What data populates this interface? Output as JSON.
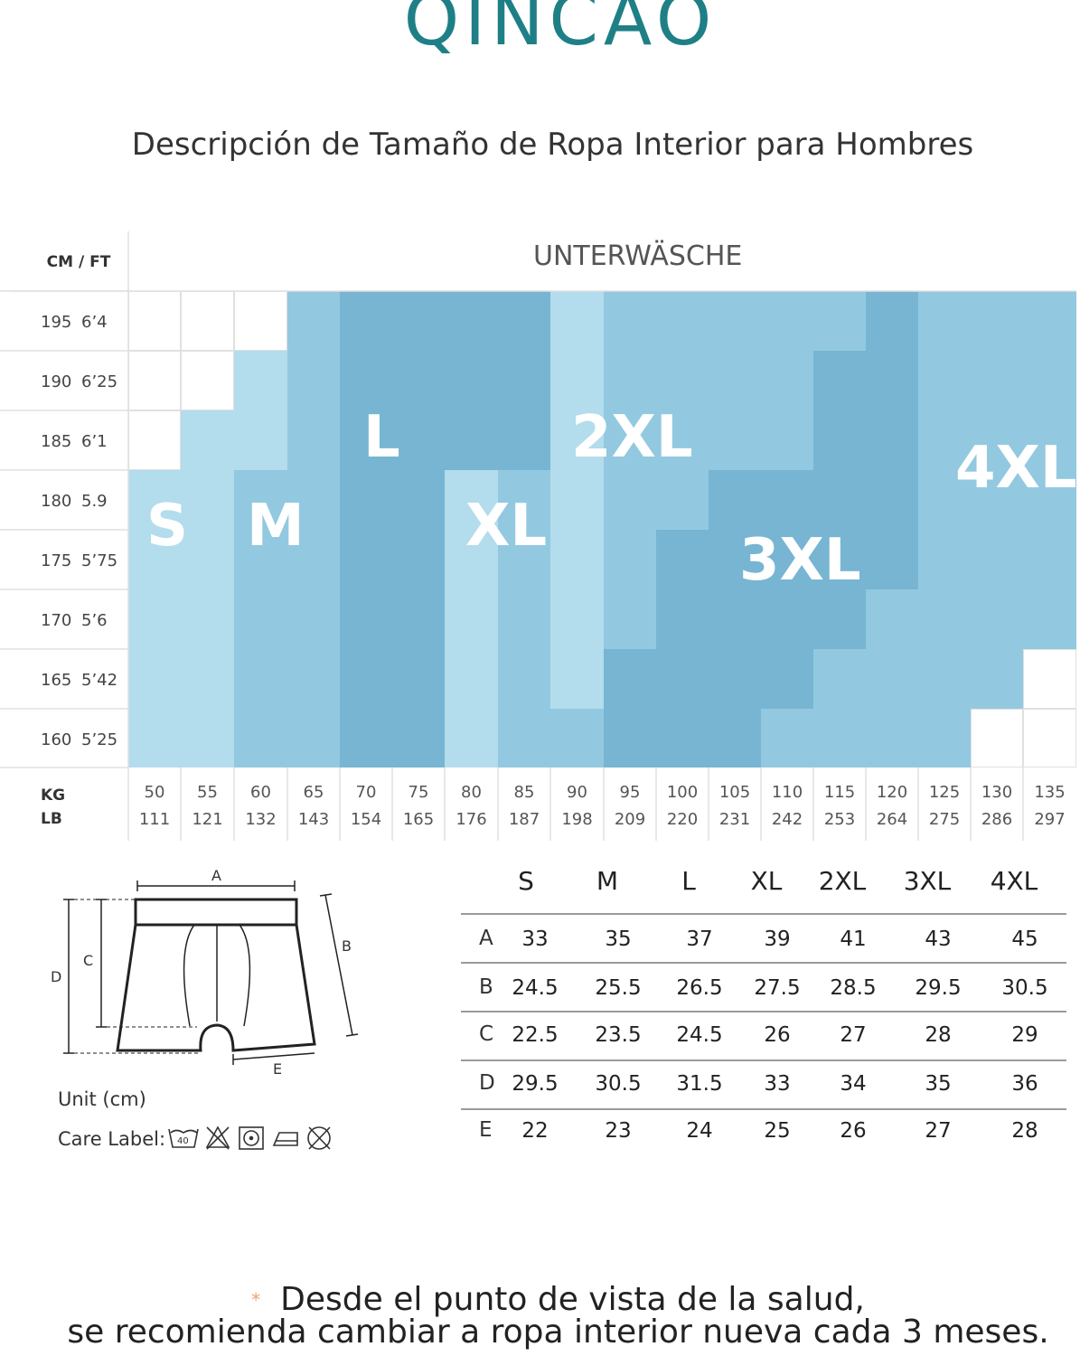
{
  "brand": {
    "logo_text": "QINCAO"
  },
  "title": "Descripción de Tamaño de Ropa Interior para Hombres",
  "size_chart": {
    "corner_label": "CM / FT",
    "heading": "UNTERWÄSCHE",
    "height_rows": [
      {
        "cm": "195",
        "ft": "6’4"
      },
      {
        "cm": "190",
        "ft": "6’25"
      },
      {
        "cm": "185",
        "ft": "6’1"
      },
      {
        "cm": "180",
        "ft": "5.9"
      },
      {
        "cm": "175",
        "ft": "5’75"
      },
      {
        "cm": "170",
        "ft": "5’6"
      },
      {
        "cm": "165",
        "ft": "5’42"
      },
      {
        "cm": "160",
        "ft": "5’25"
      }
    ],
    "weight_label_kg": "KG",
    "weight_label_lb": "LB",
    "weights_kg": [
      "50",
      "55",
      "60",
      "65",
      "70",
      "75",
      "80",
      "85",
      "90",
      "95",
      "100",
      "105",
      "110",
      "115",
      "120",
      "125",
      "130",
      "135"
    ],
    "weights_lb": [
      "111",
      "121",
      "132",
      "143",
      "154",
      "165",
      "176",
      "187",
      "198",
      "209",
      "220",
      "231",
      "242",
      "253",
      "264",
      "275",
      "286",
      "297"
    ],
    "size_labels": [
      "S",
      "M",
      "L",
      "XL",
      "2XL",
      "3XL",
      "4XL"
    ],
    "colors": {
      "light": "#b3dcec",
      "medium": "#92c9e0",
      "dark": "#77b5d2",
      "empty": "#ffffff",
      "grid": "#e0e0e0"
    }
  },
  "diagram": {
    "labels": [
      "A",
      "B",
      "C",
      "D",
      "E"
    ],
    "unit": "Unit (cm)",
    "care_label": "Care Label:",
    "care_icons": [
      "wash-40-icon",
      "no-bleach-icon",
      "tumble-dry-icon",
      "iron-icon",
      "no-dry-clean-icon"
    ],
    "care_wash_temp": "40"
  },
  "measurements": {
    "sizes": [
      "S",
      "M",
      "L",
      "XL",
      "2XL",
      "3XL",
      "4XL"
    ],
    "rows": [
      {
        "label": "A",
        "values": [
          "33",
          "35",
          "37",
          "39",
          "41",
          "43",
          "45"
        ]
      },
      {
        "label": "B",
        "values": [
          "24.5",
          "25.5",
          "26.5",
          "27.5",
          "28.5",
          "29.5",
          "30.5"
        ]
      },
      {
        "label": "C",
        "values": [
          "22.5",
          "23.5",
          "24.5",
          "26",
          "27",
          "28",
          "29"
        ]
      },
      {
        "label": "D",
        "values": [
          "29.5",
          "30.5",
          "31.5",
          "33",
          "34",
          "35",
          "36"
        ]
      },
      {
        "label": "E",
        "values": [
          "22",
          "23",
          "24",
          "25",
          "26",
          "27",
          "28"
        ]
      }
    ]
  },
  "note": {
    "star": "*",
    "line1": "Desde el punto de vista de la salud,",
    "line2": "se recomienda cambiar a ropa interior nueva cada 3 meses."
  }
}
